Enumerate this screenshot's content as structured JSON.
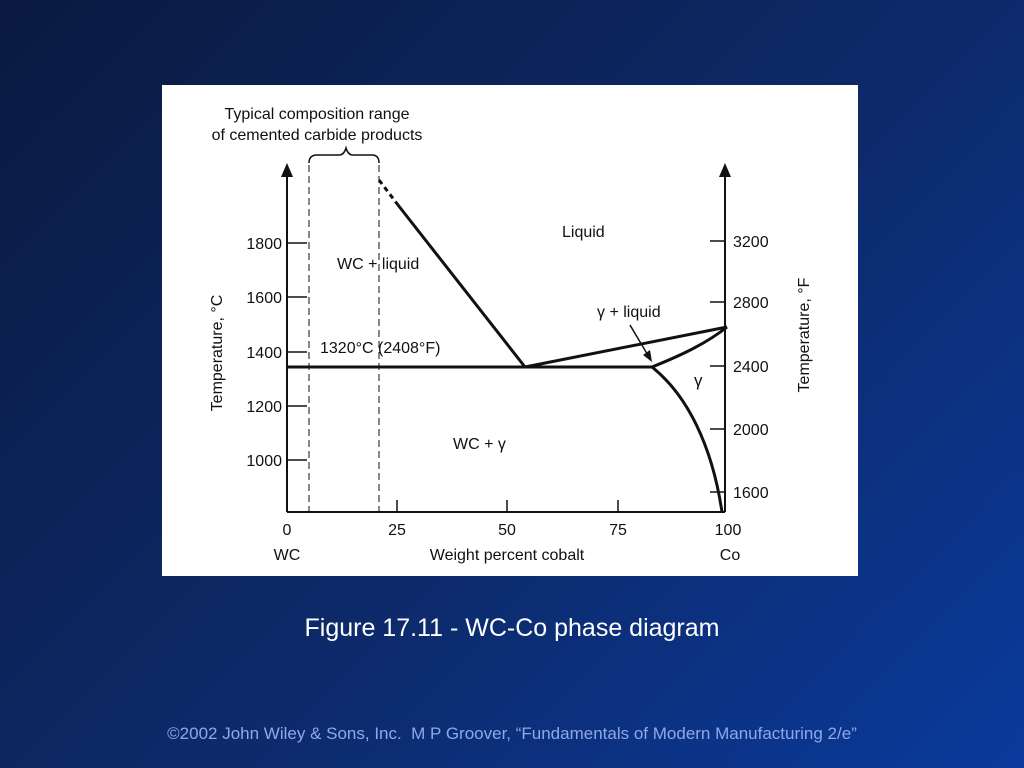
{
  "slide": {
    "caption": "Figure 17.11 - WC-Co phase diagram",
    "footer": "©2002 John Wiley & Sons, Inc.  M P Groover, “Fundamentals of Modern Manufacturing 2/e”"
  },
  "diagram": {
    "composition_note_line1": "Typical composition range",
    "composition_note_line2": "of cemented carbide products",
    "x_axis": {
      "label": "Weight percent cobalt",
      "ticks": [
        "0",
        "25",
        "50",
        "75",
        "100"
      ],
      "left_end_label": "WC",
      "right_end_label": "Co"
    },
    "y_axis_left": {
      "label": "Temperature, °C",
      "ticks": [
        "1800",
        "1600",
        "1400",
        "1200",
        "1000"
      ]
    },
    "y_axis_right": {
      "label": "Temperature, °F",
      "ticks": [
        "3200",
        "2800",
        "2400",
        "2000",
        "1600"
      ]
    },
    "regions": {
      "liquid": "Liquid",
      "wc_liquid": "WC + liquid",
      "gamma_liquid": "γ + liquid",
      "gamma": "γ",
      "wc_gamma": "WC + γ"
    },
    "eutectic_label": "1320°C (2408°F)"
  }
}
